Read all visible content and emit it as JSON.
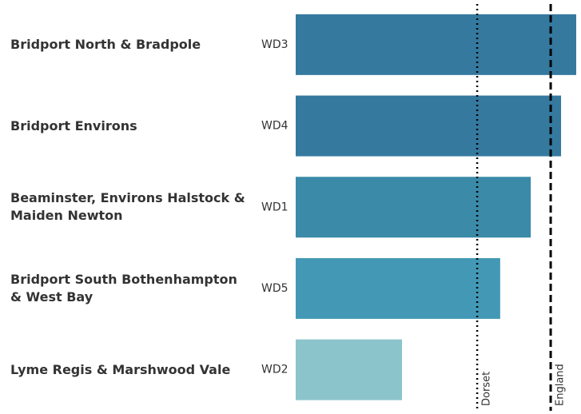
{
  "chart_data": {
    "type": "hbar",
    "categories": [
      "Bridport North & Bradpole",
      "Bridport Environs",
      "Beaminster, Environs Halstock & Maiden Newton",
      "Bridport South Bothenhampton & West Bay",
      "Lyme Regis & Marshwood Vale"
    ],
    "codes": [
      "WD3",
      "WD4",
      "WD1",
      "WD5",
      "WD2"
    ],
    "values": [
      100,
      94.6,
      83.8,
      72.9,
      37.9
    ],
    "colors": [
      "#35799f",
      "#35799f",
      "#3a8aa8",
      "#4399b5",
      "#8cc4cc"
    ],
    "xlim": [
      0,
      100
    ],
    "reference_lines": [
      {
        "label": "Dorset",
        "value": 64.7,
        "style": "dotted"
      },
      {
        "label": "England",
        "value": 90.9,
        "style": "dashed"
      }
    ]
  }
}
